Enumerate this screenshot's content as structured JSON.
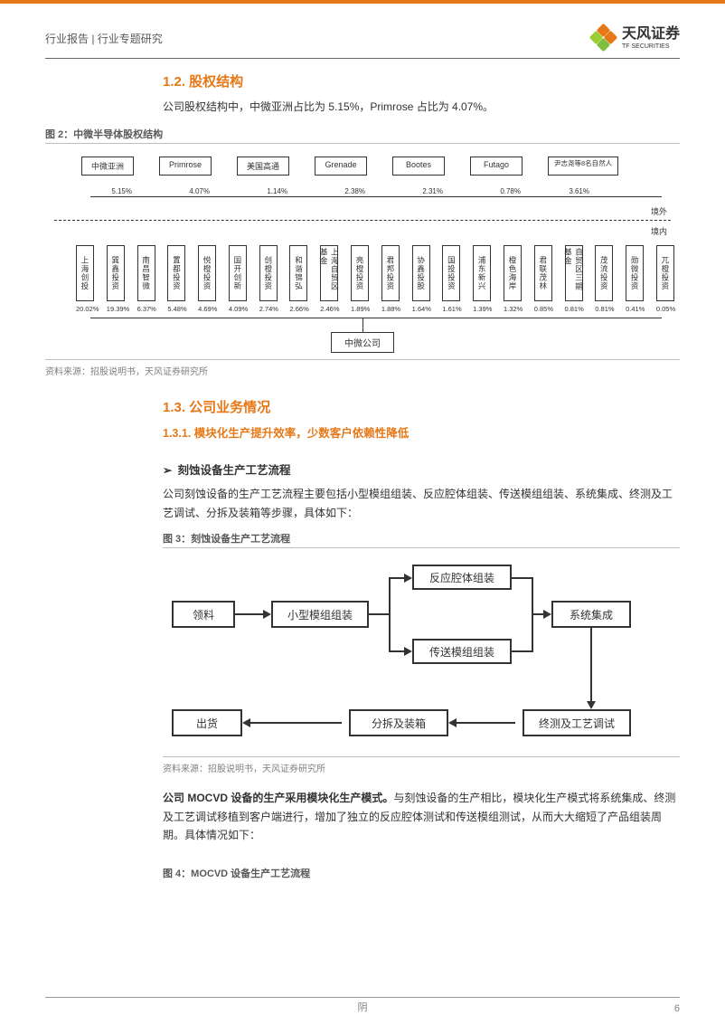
{
  "colors": {
    "accent": "#e67817",
    "text": "#333333",
    "muted": "#808080",
    "line": "#333333"
  },
  "header": {
    "breadcrumb": "行业报告 | 行业专题研究",
    "logo_cn": "天风证券",
    "logo_en": "TF SECURITIES",
    "petal_colors": [
      "#e67817",
      "#9acd32",
      "#7fbf3f",
      "#e67817"
    ]
  },
  "s12": {
    "title": "1.2. 股权结构",
    "para": "公司股权结构中，中微亚洲占比为 5.15%，Primrose 占比为 4.07%。"
  },
  "fig2": {
    "label": "图 2：中微半导体股权结构",
    "top_nodes": [
      {
        "label": "中微亚洲",
        "pct": "5.15%"
      },
      {
        "label": "Primrose",
        "pct": "4.07%"
      },
      {
        "label": "美国高通",
        "pct": "1.14%"
      },
      {
        "label": "Grenade",
        "pct": "2.38%"
      },
      {
        "label": "Bootes",
        "pct": "2.31%"
      },
      {
        "label": "Futago",
        "pct": "0.78%"
      },
      {
        "label": "尹志尧等8名自然人",
        "pct": "3.61%"
      }
    ],
    "out_labels": {
      "overseas": "境外",
      "domestic": "境内"
    },
    "bottom_nodes": [
      {
        "label": "上海创投",
        "pct": "20.02%"
      },
      {
        "label": "巽鑫投资",
        "pct": "19.39%"
      },
      {
        "label": "南昌智微",
        "pct": "6.37%"
      },
      {
        "label": "置都投资",
        "pct": "5.48%"
      },
      {
        "label": "悦橙投资",
        "pct": "4.69%"
      },
      {
        "label": "国开创新",
        "pct": "4.09%"
      },
      {
        "label": "创橙投资",
        "pct": "2.74%"
      },
      {
        "label": "和谐锦弘",
        "pct": "2.66%"
      },
      {
        "label": "上海自贸区基金",
        "pct": "2.46%"
      },
      {
        "label": "亮橙投资",
        "pct": "1.89%"
      },
      {
        "label": "君邦投资",
        "pct": "1.88%"
      },
      {
        "label": "协鑫投股",
        "pct": "1.64%"
      },
      {
        "label": "国投投资",
        "pct": "1.61%"
      },
      {
        "label": "浦东新兴",
        "pct": "1.39%"
      },
      {
        "label": "橙色海岸",
        "pct": "1.32%"
      },
      {
        "label": "君联茂林",
        "pct": "0.85%"
      },
      {
        "label": "自贸区三期基金",
        "pct": "0.81%"
      },
      {
        "label": "茂流投资",
        "pct": "0.81%"
      },
      {
        "label": "勋微投资",
        "pct": "0.41%"
      },
      {
        "label": "兀橙投资",
        "pct": "0.05%"
      }
    ],
    "center": "中微公司",
    "source": "资料来源：招股说明书，天风证券研究所"
  },
  "s13": {
    "title": "1.3. 公司业务情况",
    "sub": "1.3.1. 模块化生产提升效率，少数客户依赖性降低",
    "bullet": "刻蚀设备生产工艺流程",
    "para": "公司刻蚀设备的生产工艺流程主要包括小型模组组装、反应腔体组装、传送模组组装、系统集成、终测及工艺调试、分拆及装箱等步骤，具体如下："
  },
  "fig3": {
    "label": "图 3：刻蚀设备生产工艺流程",
    "nodes": {
      "n1": "领料",
      "n2": "小型模组组装",
      "n3": "反应腔体组装",
      "n4": "传送模组组装",
      "n5": "系统集成",
      "n6": "终测及工艺调试",
      "n7": "分拆及装箱",
      "n8": "出货"
    },
    "source": "资料来源：招股说明书，天风证券研究所",
    "boxstyle": {
      "border_color": "#333333",
      "border_width": 2,
      "fontsize": 12
    }
  },
  "para_mocvd_bold": "公司 MOCVD 设备的生产采用模块化生产模式。",
  "para_mocvd_rest": "与刻蚀设备的生产相比，模块化生产模式将系统集成、终测及工艺调试移植到客户端进行，增加了独立的反应腔体测试和传送模组测试，从而大大缩短了产品组装周期。具体情况如下：",
  "fig4": {
    "label": "图 4：MOCVD 设备生产工艺流程"
  },
  "footer": {
    "center": "阴",
    "page": "6"
  }
}
